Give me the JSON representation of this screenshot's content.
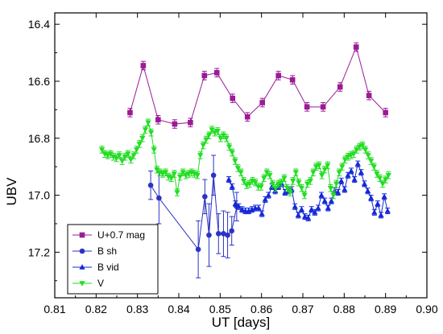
{
  "chart_data": {
    "type": "scatter",
    "title": "",
    "xlabel": "UT [days]",
    "ylabel": "UBV",
    "xlim": [
      0.81,
      0.9
    ],
    "ylim": [
      17.36,
      16.36
    ],
    "y_inverted": true,
    "x_ticks": [
      "0.81",
      "0.82",
      "0.83",
      "0.84",
      "0.85",
      "0.86",
      "0.87",
      "0.88",
      "0.89",
      "0.90"
    ],
    "y_ticks": [
      "16.4",
      "16.6",
      "16.8",
      "17.0",
      "17.2"
    ],
    "grid": false,
    "legend_position": "bottom-left",
    "series": [
      {
        "name": "U+0.7 mag",
        "color": "#9b1b96",
        "marker": "square",
        "line": true,
        "x": [
          0.8282,
          0.8314,
          0.835,
          0.839,
          0.8428,
          0.8462,
          0.8492,
          0.853,
          0.8566,
          0.8602,
          0.8641,
          0.8675,
          0.871,
          0.8749,
          0.879,
          0.8829,
          0.886,
          0.89
        ],
        "y": [
          16.71,
          16.545,
          16.735,
          16.75,
          16.745,
          16.58,
          16.57,
          16.66,
          16.725,
          16.675,
          16.58,
          16.595,
          16.69,
          16.69,
          16.62,
          16.48,
          16.65,
          16.71
        ],
        "err": [
          0.015,
          0.015,
          0.015,
          0.015,
          0.015,
          0.015,
          0.015,
          0.015,
          0.015,
          0.015,
          0.015,
          0.015,
          0.015,
          0.015,
          0.015,
          0.015,
          0.015,
          0.015
        ]
      },
      {
        "name": "B sh",
        "color": "#2b33c4",
        "marker": "circle",
        "line": true,
        "x": [
          0.8332,
          0.8352,
          0.8447,
          0.8463,
          0.8473,
          0.8484,
          0.8496,
          0.8508,
          0.8518,
          0.8528,
          0.854
        ],
        "y": [
          16.965,
          17.01,
          17.19,
          17.005,
          17.14,
          16.93,
          17.135,
          17.135,
          17.14,
          17.125,
          17.04
        ],
        "err": [
          0.05,
          0.09,
          0.1,
          0.06,
          0.11,
          0.07,
          0.07,
          0.08,
          0.08,
          0.05,
          0.05
        ]
      },
      {
        "name": "B vid",
        "color": "#1528d8",
        "marker": "triangle-up",
        "line": true,
        "x": [
          0.8521,
          0.8529,
          0.8537,
          0.8545,
          0.8553,
          0.8561,
          0.8569,
          0.8577,
          0.8585,
          0.8593,
          0.8601,
          0.8609,
          0.8617,
          0.8625,
          0.8633,
          0.8641,
          0.8649,
          0.8657,
          0.8665,
          0.8673,
          0.8681,
          0.8689,
          0.8697,
          0.8705,
          0.8713,
          0.8721,
          0.8729,
          0.8737,
          0.8745,
          0.8753,
          0.8761,
          0.8769,
          0.8777,
          0.8785,
          0.8793,
          0.8801,
          0.8809,
          0.8817,
          0.8825,
          0.8833,
          0.8841,
          0.8849,
          0.8857,
          0.8865,
          0.8873,
          0.8881,
          0.8889,
          0.8897,
          0.8905
        ],
        "y": [
          16.945,
          16.97,
          17.03,
          17.04,
          17.05,
          17.055,
          17.055,
          17.05,
          17.045,
          17.045,
          17.065,
          17.015,
          17.0,
          16.97,
          16.985,
          16.97,
          16.96,
          16.99,
          16.985,
          16.98,
          17.04,
          17.07,
          17.05,
          17.075,
          17.08,
          17.05,
          17.06,
          17.045,
          17.0,
          17.02,
          17.045,
          17.02,
          16.985,
          16.99,
          16.95,
          16.98,
          16.93,
          16.915,
          16.945,
          16.89,
          16.92,
          16.96,
          16.985,
          17.01,
          17.06,
          17.03,
          17.07,
          17.005,
          17.055
        ],
        "err": [
          0.01,
          0.01,
          0.01,
          0.01,
          0.01,
          0.01,
          0.01,
          0.01,
          0.01,
          0.01,
          0.01,
          0.01,
          0.01,
          0.01,
          0.01,
          0.01,
          0.01,
          0.01,
          0.01,
          0.01,
          0.01,
          0.01,
          0.01,
          0.01,
          0.01,
          0.01,
          0.01,
          0.01,
          0.01,
          0.01,
          0.01,
          0.01,
          0.01,
          0.01,
          0.01,
          0.01,
          0.01,
          0.01,
          0.01,
          0.01,
          0.01,
          0.01,
          0.01,
          0.01,
          0.01,
          0.01,
          0.01,
          0.01,
          0.01
        ]
      },
      {
        "name": "V",
        "color": "#22dd22",
        "marker": "triangle-down",
        "line": true,
        "x": [
          0.8214,
          0.8221,
          0.8228,
          0.8235,
          0.8242,
          0.8249,
          0.8256,
          0.8263,
          0.827,
          0.8277,
          0.8284,
          0.8291,
          0.8298,
          0.8305,
          0.8312,
          0.8319,
          0.8326,
          0.8333,
          0.834,
          0.8347,
          0.8354,
          0.8361,
          0.8368,
          0.8375,
          0.8382,
          0.8389,
          0.8396,
          0.8403,
          0.841,
          0.8417,
          0.8424,
          0.8431,
          0.8438,
          0.8445,
          0.8452,
          0.8459,
          0.8466,
          0.8473,
          0.848,
          0.8487,
          0.8494,
          0.8501,
          0.8508,
          0.8515,
          0.8522,
          0.8529,
          0.8536,
          0.8543,
          0.855,
          0.8557,
          0.8564,
          0.8571,
          0.8578,
          0.8585,
          0.8592,
          0.8599,
          0.8606,
          0.8613,
          0.862,
          0.8627,
          0.8634,
          0.8641,
          0.8648,
          0.8655,
          0.8662,
          0.8669,
          0.8676,
          0.8683,
          0.869,
          0.8697,
          0.8704,
          0.8711,
          0.8718,
          0.8725,
          0.8732,
          0.8739,
          0.8746,
          0.8753,
          0.876,
          0.8767,
          0.8774,
          0.8781,
          0.8788,
          0.8795,
          0.8802,
          0.8809,
          0.8816,
          0.8823,
          0.883,
          0.8837,
          0.8844,
          0.8851,
          0.8858,
          0.8865,
          0.8872,
          0.8879,
          0.8886,
          0.8893,
          0.89,
          0.8907
        ],
        "y": [
          16.84,
          16.855,
          16.86,
          16.855,
          16.865,
          16.87,
          16.86,
          16.88,
          16.865,
          16.855,
          16.875,
          16.86,
          16.84,
          16.82,
          16.8,
          16.77,
          16.745,
          16.78,
          16.84,
          16.91,
          16.92,
          16.925,
          16.92,
          16.935,
          16.94,
          16.925,
          16.99,
          16.935,
          16.92,
          16.93,
          16.925,
          16.92,
          16.925,
          16.93,
          16.86,
          16.825,
          16.805,
          16.79,
          16.77,
          16.78,
          16.775,
          16.8,
          16.79,
          16.8,
          16.83,
          16.85,
          16.88,
          16.905,
          16.92,
          16.95,
          16.965,
          16.96,
          16.95,
          16.955,
          16.97,
          16.97,
          16.94,
          16.92,
          16.93,
          16.96,
          16.975,
          16.96,
          16.955,
          16.94,
          16.975,
          16.99,
          16.95,
          16.92,
          16.955,
          16.975,
          17.0,
          16.96,
          16.95,
          16.92,
          16.9,
          16.895,
          16.93,
          16.91,
          16.895,
          16.975,
          17.0,
          16.96,
          16.92,
          16.9,
          16.875,
          16.865,
          16.86,
          16.855,
          16.84,
          16.83,
          16.825,
          16.84,
          16.86,
          16.88,
          16.9,
          16.925,
          16.94,
          16.96,
          16.945,
          16.93
        ],
        "err": [
          0.012,
          0.012,
          0.012,
          0.012,
          0.012,
          0.012,
          0.012,
          0.012,
          0.012,
          0.012,
          0.012,
          0.012,
          0.012,
          0.012,
          0.012,
          0.012,
          0.012,
          0.012,
          0.012,
          0.012,
          0.012,
          0.012,
          0.012,
          0.012,
          0.012,
          0.012,
          0.012,
          0.012,
          0.012,
          0.012,
          0.012,
          0.012,
          0.012,
          0.012,
          0.012,
          0.012,
          0.012,
          0.012,
          0.012,
          0.012,
          0.012,
          0.012,
          0.012,
          0.012,
          0.012,
          0.012,
          0.012,
          0.012,
          0.012,
          0.012,
          0.012,
          0.012,
          0.012,
          0.012,
          0.012,
          0.012,
          0.012,
          0.012,
          0.012,
          0.012,
          0.012,
          0.012,
          0.012,
          0.012,
          0.012,
          0.012,
          0.012,
          0.012,
          0.012,
          0.012,
          0.012,
          0.012,
          0.012,
          0.012,
          0.012,
          0.012,
          0.012,
          0.012,
          0.012,
          0.012,
          0.012,
          0.012,
          0.012,
          0.012,
          0.012,
          0.012,
          0.012,
          0.012,
          0.012,
          0.012,
          0.012,
          0.012,
          0.012,
          0.012,
          0.012,
          0.012,
          0.012,
          0.012,
          0.012,
          0.012
        ]
      }
    ]
  }
}
